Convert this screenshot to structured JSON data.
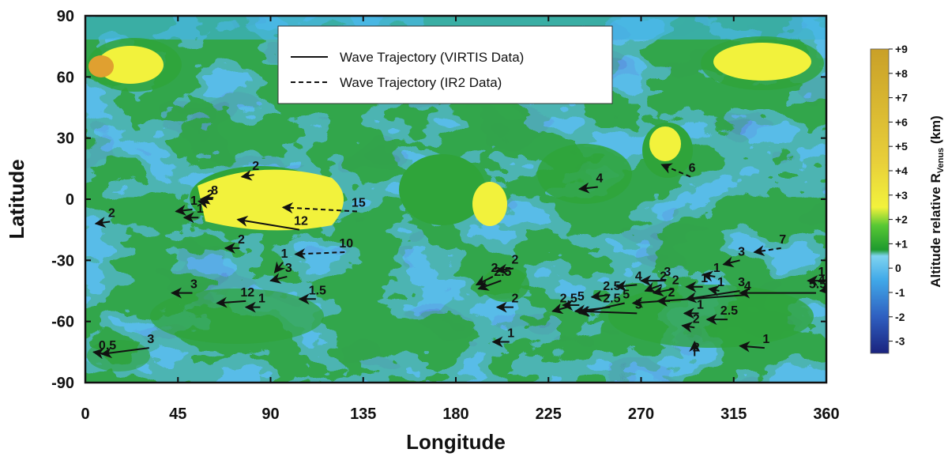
{
  "map": {
    "xlabel": "Longitude",
    "ylabel": "Latitude",
    "xticks": [
      "0",
      "45",
      "90",
      "135",
      "180",
      "225",
      "270",
      "315",
      "360"
    ],
    "yticks": [
      "90",
      "60",
      "30",
      "0",
      "-30",
      "-60",
      "-90"
    ],
    "xlim": [
      0,
      360
    ],
    "ylim": [
      -90,
      90
    ]
  },
  "legend": {
    "position": "top-center",
    "items": [
      {
        "label": "Wave Trajectory (VIRTIS Data)",
        "style": "solid"
      },
      {
        "label": "Wave Trajectory (IR2 Data)",
        "style": "dashed"
      }
    ]
  },
  "colorbar": {
    "title": "Altitude relative R",
    "title_sub": "Venus",
    "title_unit": " (km)",
    "ticks": [
      "+9",
      "+8",
      "+7",
      "+6",
      "+5",
      "+4",
      "+3",
      "+2",
      "+1",
      "0",
      "-1",
      "-2",
      "-3"
    ],
    "range": [
      -3.5,
      9
    ],
    "colors": [
      "#1a237e",
      "#2f5fc0",
      "#40a8e8",
      "#7fd4f0",
      "#1e9a2e",
      "#58c834",
      "#f2f23c",
      "#e8cf3a",
      "#c9a028"
    ]
  },
  "chart_data": {
    "type": "map-vectors",
    "units": {
      "x": "degrees longitude",
      "y": "degrees latitude"
    },
    "trajectories": [
      {
        "label": "15",
        "style": "dashed",
        "from": [
          132,
          -6
        ],
        "to": [
          96,
          -4
        ]
      },
      {
        "label": "12",
        "style": "solid",
        "from": [
          104,
          -15
        ],
        "to": [
          74,
          -10
        ]
      },
      {
        "label": "10",
        "style": "dashed",
        "from": [
          126,
          -26
        ],
        "to": [
          102,
          -27
        ]
      },
      {
        "label": "6",
        "style": "dashed",
        "from": [
          294,
          11
        ],
        "to": [
          280,
          17
        ]
      },
      {
        "label": "7",
        "style": "dashed",
        "from": [
          338,
          -24
        ],
        "to": [
          325,
          -26
        ]
      },
      {
        "label": "5.5",
        "style": "solid",
        "from": [
          355,
          -46
        ],
        "to": [
          318,
          -46
        ]
      },
      {
        "label": "4",
        "style": "solid",
        "from": [
          321,
          -47
        ],
        "to": [
          266,
          -51
        ]
      },
      {
        "label": "3",
        "style": "solid",
        "from": [
          318,
          -45
        ],
        "to": [
          292,
          -49
        ]
      },
      {
        "label": "3",
        "style": "solid",
        "from": [
          31,
          -73
        ],
        "to": [
          8,
          -76
        ]
      },
      {
        "label": "0.5",
        "style": "solid",
        "from": [
          10,
          -76
        ],
        "to": [
          4,
          -75
        ]
      },
      {
        "label": "5",
        "style": "solid",
        "from": [
          268,
          -56
        ],
        "to": [
          240,
          -55
        ]
      },
      {
        "label": "5",
        "style": "solid",
        "from": [
          262,
          -51
        ],
        "to": [
          240,
          -56
        ]
      },
      {
        "label": "2.5",
        "style": "solid",
        "from": [
          255,
          -53
        ],
        "to": [
          238,
          -55
        ]
      },
      {
        "label": "5",
        "style": "solid",
        "from": [
          240,
          -52
        ],
        "to": [
          232,
          -52
        ]
      },
      {
        "label": "2.5",
        "style": "solid",
        "from": [
          234,
          -53
        ],
        "to": [
          227,
          -55
        ]
      },
      {
        "label": "2.5",
        "style": "solid",
        "from": [
          255,
          -47
        ],
        "to": [
          246,
          -48
        ]
      },
      {
        "label": "4",
        "style": "solid",
        "from": [
          268,
          -42
        ],
        "to": [
          258,
          -43
        ]
      },
      {
        "label": "3",
        "style": "solid",
        "from": [
          282,
          -40
        ],
        "to": [
          270,
          -40
        ]
      },
      {
        "label": "2",
        "style": "solid",
        "from": [
          280,
          -42
        ],
        "to": [
          272,
          -45
        ]
      },
      {
        "label": "2",
        "style": "solid",
        "from": [
          286,
          -44
        ],
        "to": [
          276,
          -46
        ]
      },
      {
        "label": "2",
        "style": "solid",
        "from": [
          284,
          -50
        ],
        "to": [
          278,
          -50
        ]
      },
      {
        "label": "1",
        "style": "solid",
        "from": [
          300,
          -43
        ],
        "to": [
          292,
          -43
        ]
      },
      {
        "label": "1",
        "style": "solid",
        "from": [
          306,
          -38
        ],
        "to": [
          300,
          -37
        ]
      },
      {
        "label": "1",
        "style": "solid",
        "from": [
          308,
          -45
        ],
        "to": [
          303,
          -44
        ]
      },
      {
        "label": "3",
        "style": "solid",
        "from": [
          318,
          -30
        ],
        "to": [
          310,
          -32
        ]
      },
      {
        "label": "1",
        "style": "solid",
        "from": [
          360,
          -40
        ],
        "to": [
          351,
          -40
        ]
      },
      {
        "label": "4",
        "style": "solid",
        "from": [
          365,
          -44
        ],
        "to": [
          357,
          -45
        ]
      },
      {
        "label": "2.5",
        "style": "solid",
        "from": [
          312,
          -59
        ],
        "to": [
          302,
          -59
        ]
      },
      {
        "label": "1",
        "style": "solid",
        "from": [
          298,
          -56
        ],
        "to": [
          291,
          -56
        ]
      },
      {
        "label": "2",
        "style": "solid",
        "from": [
          296,
          -63
        ],
        "to": [
          290,
          -62
        ]
      },
      {
        "label": "1",
        "style": "solid",
        "from": [
          330,
          -73
        ],
        "to": [
          318,
          -72
        ]
      },
      {
        "label": "2",
        "style": "solid",
        "from": [
          296,
          -77
        ],
        "to": [
          296,
          -70
        ]
      },
      {
        "label": "2.5",
        "style": "solid",
        "from": [
          202,
          -40
        ],
        "to": [
          191,
          -44
        ]
      },
      {
        "label": "2",
        "style": "solid",
        "from": [
          198,
          -38
        ],
        "to": [
          190,
          -42
        ]
      },
      {
        "label": "2",
        "style": "solid",
        "from": [
          208,
          -34
        ],
        "to": [
          200,
          -35
        ]
      },
      {
        "label": "2",
        "style": "solid",
        "from": [
          208,
          -53
        ],
        "to": [
          200,
          -53
        ]
      },
      {
        "label": "1",
        "style": "solid",
        "from": [
          206,
          -70
        ],
        "to": [
          198,
          -70
        ]
      },
      {
        "label": "4",
        "style": "solid",
        "from": [
          249,
          6
        ],
        "to": [
          240,
          5
        ]
      },
      {
        "label": "2",
        "style": "solid",
        "from": [
          82,
          12
        ],
        "to": [
          76,
          11
        ]
      },
      {
        "label": "2",
        "style": "solid",
        "from": [
          60,
          -2
        ],
        "to": [
          55,
          -1
        ]
      },
      {
        "label": "8",
        "style": "solid",
        "from": [
          62,
          0
        ],
        "to": [
          56,
          0
        ]
      },
      {
        "label": "1",
        "style": "solid",
        "from": [
          52,
          -5
        ],
        "to": [
          44,
          -6
        ]
      },
      {
        "label": "1",
        "style": "solid",
        "from": [
          55,
          -9
        ],
        "to": [
          48,
          -9
        ]
      },
      {
        "label": "2",
        "style": "solid",
        "from": [
          12,
          -11
        ],
        "to": [
          5,
          -12
        ]
      },
      {
        "label": "2",
        "style": "solid",
        "from": [
          75,
          -24
        ],
        "to": [
          68,
          -24
        ]
      },
      {
        "label": "1",
        "style": "solid",
        "from": [
          96,
          -31
        ],
        "to": [
          92,
          -36
        ]
      },
      {
        "label": "3",
        "style": "solid",
        "from": [
          98,
          -38
        ],
        "to": [
          90,
          -40
        ]
      },
      {
        "label": "1.5",
        "style": "solid",
        "from": [
          112,
          -49
        ],
        "to": [
          104,
          -49
        ]
      },
      {
        "label": "3",
        "style": "solid",
        "from": [
          52,
          -46
        ],
        "to": [
          42,
          -46
        ]
      },
      {
        "label": "12",
        "style": "solid",
        "from": [
          78,
          -50
        ],
        "to": [
          64,
          -51
        ]
      },
      {
        "label": "1",
        "style": "solid",
        "from": [
          85,
          -53
        ],
        "to": [
          78,
          -53
        ]
      }
    ]
  }
}
